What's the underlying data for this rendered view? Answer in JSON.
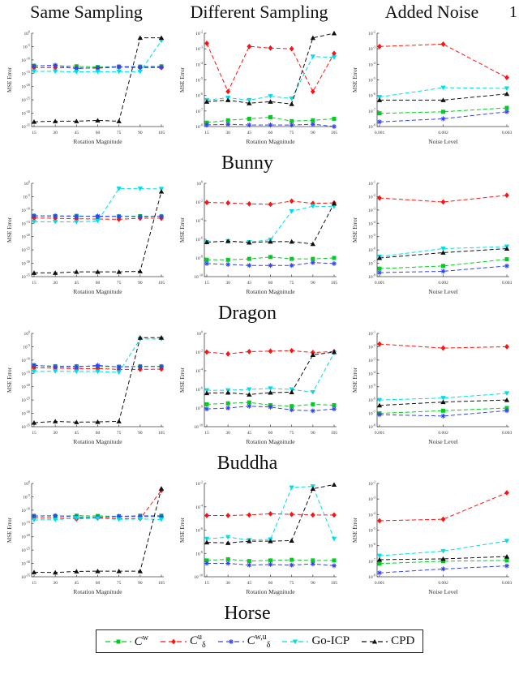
{
  "page": {
    "number": "1"
  },
  "header": {
    "columns": [
      "Same Sampling",
      "Different Sampling",
      "Added Noise"
    ]
  },
  "rows": [
    "Bunny",
    "Dragon",
    "Buddha",
    "Horse"
  ],
  "axis": {
    "ylabel": "MSE Error",
    "xlabel_rotation": "Rotation Magnitude",
    "xlabel_noise": "Noise Level"
  },
  "legend": {
    "entries": [
      {
        "name": "C^w",
        "base": "C",
        "sup": "w",
        "sub": "",
        "color": "#00cc22",
        "marker": "square"
      },
      {
        "name": "C_d^u",
        "base": "C",
        "sup": "u",
        "sub": "δ",
        "color": "#ff1111",
        "marker": "diamond"
      },
      {
        "name": "C_d^w,u",
        "base": "C",
        "sup": "w,u",
        "sub": "δ",
        "color": "#3344ee",
        "marker": "asterisk"
      },
      {
        "name": "Go-ICP",
        "base": "Go-ICP",
        "sup": "",
        "sub": "",
        "color": "#00dde8",
        "marker": "triangle-down"
      },
      {
        "name": "CPD",
        "base": "CPD",
        "sup": "",
        "sub": "",
        "color": "#111111",
        "marker": "triangle-up"
      }
    ]
  },
  "chart_data": [
    {
      "type": "line",
      "row_label": "Bunny",
      "column": "Same Sampling",
      "xlabel": "Rotation Magnitude",
      "ylabel": "MSE Error",
      "x": [
        15,
        30,
        45,
        60,
        75,
        90,
        105
      ],
      "xtick_labels": [
        "15",
        "30",
        "45",
        "60",
        "75",
        "90",
        "105"
      ],
      "ylog_range": [
        -35,
        0
      ],
      "ytick_step": 5,
      "grid": false,
      "series": [
        {
          "name": "C^w",
          "log10_values": [
            -12.2,
            -12.2,
            -12.4,
            -12.7,
            -12.5,
            -12.5,
            -12.4
          ]
        },
        {
          "name": "C_d^u",
          "log10_values": [
            -12.9,
            -12.9,
            -13.0,
            -13.1,
            -12.7,
            -12.9,
            -12.9
          ]
        },
        {
          "name": "C_d^w,u",
          "log10_values": [
            -12.3,
            -12.0,
            -13.3,
            -12.9,
            -12.6,
            -12.7,
            -12.7
          ]
        },
        {
          "name": "Go-ICP",
          "log10_values": [
            -14.3,
            -14.3,
            -14.5,
            -14.4,
            -14.4,
            -14.4,
            -2.8
          ]
        },
        {
          "name": "CPD",
          "log10_values": [
            -33.2,
            -33.0,
            -33.0,
            -32.7,
            -33.0,
            -1.7,
            -1.7
          ]
        }
      ]
    },
    {
      "type": "line",
      "row_label": "Bunny",
      "column": "Different Sampling",
      "xlabel": "Rotation Magnitude",
      "ylabel": "MSE Error",
      "x": [
        15,
        30,
        45,
        60,
        75,
        90,
        105
      ],
      "xtick_labels": [
        "15",
        "30",
        "45",
        "60",
        "75",
        "90",
        "105"
      ],
      "ylog_range": [
        -8,
        -2
      ],
      "ytick_step": 1,
      "grid": false,
      "series": [
        {
          "name": "C^w",
          "log10_values": [
            -7.75,
            -7.6,
            -7.5,
            -7.4,
            -7.65,
            -7.6,
            -7.5
          ]
        },
        {
          "name": "C_d^u",
          "log10_values": [
            -2.65,
            -5.75,
            -2.85,
            -2.95,
            -3.0,
            -5.75,
            -3.3
          ]
        },
        {
          "name": "C_d^w,u",
          "log10_values": [
            -7.9,
            -7.85,
            -7.9,
            -7.9,
            -7.9,
            -7.85,
            -8.0
          ]
        },
        {
          "name": "Go-ICP",
          "log10_values": [
            -6.3,
            -6.15,
            -6.3,
            -6.05,
            -6.2,
            -3.5,
            -3.55
          ]
        },
        {
          "name": "CPD",
          "log10_values": [
            -6.4,
            -6.3,
            -6.5,
            -6.4,
            -6.55,
            -2.3,
            -2.0
          ]
        }
      ]
    },
    {
      "type": "line",
      "row_label": "Bunny",
      "column": "Added Noise",
      "xlabel": "Noise Level",
      "ylabel": "MSE Error",
      "x": [
        0.001,
        0.002,
        0.003
      ],
      "xtick_labels": [
        "0.001",
        "0.002",
        "0.003"
      ],
      "ylog_range": [
        -8,
        -2
      ],
      "ytick_step": 1,
      "grid": false,
      "series": [
        {
          "name": "C^w",
          "log10_values": [
            -7.15,
            -7.05,
            -6.8
          ]
        },
        {
          "name": "C_d^u",
          "log10_values": [
            -2.85,
            -2.7,
            -4.85
          ]
        },
        {
          "name": "C_d^w,u",
          "log10_values": [
            -7.7,
            -7.5,
            -7.05
          ]
        },
        {
          "name": "Go-ICP",
          "log10_values": [
            -6.1,
            -5.5,
            -5.55
          ]
        },
        {
          "name": "CPD",
          "log10_values": [
            -6.3,
            -6.3,
            -5.9
          ]
        }
      ]
    },
    {
      "type": "line",
      "row_label": "Dragon",
      "column": "Same Sampling",
      "xlabel": "Rotation Magnitude",
      "ylabel": "MSE Error",
      "x": [
        15,
        30,
        45,
        60,
        75,
        90,
        105
      ],
      "xtick_labels": [
        "15",
        "30",
        "45",
        "60",
        "75",
        "90",
        "105"
      ],
      "ylog_range": [
        -35,
        0
      ],
      "ytick_step": 5,
      "grid": false,
      "series": [
        {
          "name": "C^w",
          "log10_values": [
            -12.2,
            -12.3,
            -12.2,
            -12.5,
            -12.4,
            -12.3,
            -12.4
          ]
        },
        {
          "name": "C_d^u",
          "log10_values": [
            -13.0,
            -13.1,
            -13.3,
            -13.4,
            -13.5,
            -13.1,
            -13.1
          ]
        },
        {
          "name": "C_d^w,u",
          "log10_values": [
            -12.2,
            -12.2,
            -12.4,
            -12.3,
            -12.4,
            -12.5,
            -12.4
          ]
        },
        {
          "name": "Go-ICP",
          "log10_values": [
            -14.4,
            -14.4,
            -14.5,
            -14.1,
            -2.0,
            -2.0,
            -2.1
          ]
        },
        {
          "name": "CPD",
          "log10_values": [
            -33.6,
            -33.6,
            -33.2,
            -33.2,
            -33.2,
            -33.0,
            -3.1
          ]
        }
      ]
    },
    {
      "type": "line",
      "row_label": "Dragon",
      "column": "Different Sampling",
      "xlabel": "Rotation Magnitude",
      "ylabel": "MSE Error",
      "x": [
        15,
        30,
        45,
        60,
        75,
        90,
        105
      ],
      "xtick_labels": [
        "15",
        "30",
        "45",
        "60",
        "75",
        "90",
        "105"
      ],
      "ylog_range": [
        -10,
        0
      ],
      "ytick_step": 2,
      "grid": false,
      "series": [
        {
          "name": "C^w",
          "log10_values": [
            -8.2,
            -8.2,
            -8.1,
            -7.9,
            -8.1,
            -8.1,
            -8.0
          ]
        },
        {
          "name": "C_d^u",
          "log10_values": [
            -2.05,
            -2.1,
            -2.2,
            -2.25,
            -1.9,
            -2.15,
            -2.1
          ]
        },
        {
          "name": "C_d^w,u",
          "log10_values": [
            -8.6,
            -8.7,
            -8.8,
            -8.8,
            -8.8,
            -8.5,
            -8.6
          ]
        },
        {
          "name": "Go-ICP",
          "log10_values": [
            -6.3,
            -6.2,
            -6.3,
            -6.05,
            -3.0,
            -2.45,
            -2.5
          ]
        },
        {
          "name": "CPD",
          "log10_values": [
            -6.3,
            -6.2,
            -6.35,
            -6.25,
            -6.25,
            -6.5,
            -2.15
          ]
        }
      ]
    },
    {
      "type": "line",
      "row_label": "Dragon",
      "column": "Added Noise",
      "xlabel": "Noise Level",
      "ylabel": "MSE Error",
      "x": [
        0.001,
        0.002,
        0.003
      ],
      "xtick_labels": [
        "0.001",
        "0.002",
        "0.003"
      ],
      "ylog_range": [
        -8,
        -1
      ],
      "ytick_step": 1,
      "grid": false,
      "series": [
        {
          "name": "C^w",
          "log10_values": [
            -7.4,
            -7.2,
            -6.7
          ]
        },
        {
          "name": "C_d^u",
          "log10_values": [
            -2.1,
            -2.4,
            -1.9
          ]
        },
        {
          "name": "C_d^w,u",
          "log10_values": [
            -7.7,
            -7.6,
            -7.2
          ]
        },
        {
          "name": "Go-ICP",
          "log10_values": [
            -6.5,
            -5.9,
            -5.75
          ]
        },
        {
          "name": "CPD",
          "log10_values": [
            -6.6,
            -6.2,
            -5.9
          ]
        }
      ]
    },
    {
      "type": "line",
      "row_label": "Buddha",
      "column": "Same Sampling",
      "xlabel": "Rotation Magnitude",
      "ylabel": "MSE Error",
      "x": [
        15,
        30,
        45,
        60,
        75,
        90,
        105
      ],
      "xtick_labels": [
        "15",
        "30",
        "45",
        "60",
        "75",
        "90",
        "105"
      ],
      "ylog_range": [
        -35,
        0
      ],
      "ytick_step": 5,
      "grid": false,
      "series": [
        {
          "name": "C^w",
          "log10_values": [
            -12.1,
            -12.3,
            -12.3,
            -12.4,
            -12.5,
            -12.4,
            -12.4
          ]
        },
        {
          "name": "C_d^u",
          "log10_values": [
            -12.9,
            -13.0,
            -13.3,
            -13.2,
            -13.5,
            -13.5,
            -13.4
          ]
        },
        {
          "name": "C_d^w,u",
          "log10_values": [
            -11.9,
            -12.5,
            -12.6,
            -12.0,
            -12.6,
            -12.4,
            -12.4
          ]
        },
        {
          "name": "Go-ICP",
          "log10_values": [
            -14.3,
            -14.2,
            -14.3,
            -14.3,
            -14.6,
            -2.1,
            -2.1
          ]
        },
        {
          "name": "CPD",
          "log10_values": [
            -33.5,
            -33.0,
            -33.3,
            -33.2,
            -33.0,
            -1.6,
            -1.6
          ]
        }
      ]
    },
    {
      "type": "line",
      "row_label": "Buddha",
      "column": "Different Sampling",
      "xlabel": "Rotation Magnitude",
      "ylabel": "MSE Error",
      "x": [
        15,
        30,
        45,
        60,
        75,
        90,
        105
      ],
      "xtick_labels": [
        "15",
        "30",
        "45",
        "60",
        "75",
        "90",
        "105"
      ],
      "ylog_range": [
        -10,
        0
      ],
      "ytick_step": 2,
      "grid": false,
      "series": [
        {
          "name": "C^w",
          "log10_values": [
            -7.6,
            -7.5,
            -7.4,
            -7.7,
            -7.8,
            -7.6,
            -7.7
          ]
        },
        {
          "name": "C_d^u",
          "log10_values": [
            -2.0,
            -2.2,
            -1.95,
            -1.9,
            -1.85,
            -2.05,
            -1.95
          ]
        },
        {
          "name": "C_d^w,u",
          "log10_values": [
            -8.1,
            -8.0,
            -7.8,
            -7.9,
            -8.2,
            -8.3,
            -8.1
          ]
        },
        {
          "name": "Go-ICP",
          "log10_values": [
            -6.1,
            -6.1,
            -6.0,
            -5.9,
            -6.0,
            -6.3,
            -2.1
          ]
        },
        {
          "name": "CPD",
          "log10_values": [
            -6.4,
            -6.35,
            -6.55,
            -6.35,
            -6.3,
            -2.3,
            -2.0
          ]
        }
      ]
    },
    {
      "type": "line",
      "row_label": "Buddha",
      "column": "Added Noise",
      "xlabel": "Noise Level",
      "ylabel": "MSE Error",
      "x": [
        0.001,
        0.002,
        0.003
      ],
      "xtick_labels": [
        "0.001",
        "0.002",
        "0.003"
      ],
      "ylog_range": [
        -8,
        -1
      ],
      "ytick_step": 1,
      "grid": false,
      "series": [
        {
          "name": "C^w",
          "log10_values": [
            -7.0,
            -6.8,
            -6.6
          ]
        },
        {
          "name": "C_d^u",
          "log10_values": [
            -1.8,
            -2.1,
            -2.0
          ]
        },
        {
          "name": "C_d^w,u",
          "log10_values": [
            -7.1,
            -7.2,
            -6.8
          ]
        },
        {
          "name": "Go-ICP",
          "log10_values": [
            -6.0,
            -5.85,
            -5.5
          ]
        },
        {
          "name": "CPD",
          "log10_values": [
            -6.4,
            -6.15,
            -6.0
          ]
        }
      ]
    },
    {
      "type": "line",
      "row_label": "Horse",
      "column": "Same Sampling",
      "xlabel": "Rotation Magnitude",
      "ylabel": "MSE Error",
      "x": [
        15,
        30,
        45,
        60,
        75,
        90,
        105
      ],
      "xtick_labels": [
        "15",
        "30",
        "45",
        "60",
        "75",
        "90",
        "105"
      ],
      "ylog_range": [
        -35,
        0
      ],
      "ytick_step": 5,
      "grid": false,
      "series": [
        {
          "name": "C^w",
          "log10_values": [
            -12.2,
            -12.2,
            -12.1,
            -12.2,
            -12.3,
            -12.1,
            -12.1
          ]
        },
        {
          "name": "C_d^u",
          "log10_values": [
            -12.9,
            -12.9,
            -13.3,
            -13.0,
            -13.1,
            -13.2,
            -2.6
          ]
        },
        {
          "name": "C_d^w,u",
          "log10_values": [
            -12.2,
            -12.1,
            -12.6,
            -12.7,
            -12.3,
            -12.4,
            -12.4
          ]
        },
        {
          "name": "Go-ICP",
          "log10_values": [
            -13.7,
            -13.6,
            -13.0,
            -13.1,
            -13.5,
            -13.3,
            -13.5
          ]
        },
        {
          "name": "CPD",
          "log10_values": [
            -33.3,
            -33.4,
            -33.0,
            -32.9,
            -32.9,
            -32.9,
            -1.9
          ]
        }
      ]
    },
    {
      "type": "line",
      "row_label": "Horse",
      "column": "Different Sampling",
      "xlabel": "Rotation Magnitude",
      "ylabel": "MSE Error",
      "x": [
        15,
        30,
        45,
        60,
        75,
        90,
        105
      ],
      "xtick_labels": [
        "15",
        "30",
        "45",
        "60",
        "75",
        "90",
        "105"
      ],
      "ylog_range": [
        -10,
        -2
      ],
      "ytick_step": 2,
      "grid": false,
      "series": [
        {
          "name": "C^w",
          "log10_values": [
            -8.6,
            -8.5,
            -8.65,
            -8.6,
            -8.55,
            -8.6,
            -8.6
          ]
        },
        {
          "name": "C_d^u",
          "log10_values": [
            -4.75,
            -4.75,
            -4.7,
            -4.6,
            -4.65,
            -4.7,
            -4.7
          ]
        },
        {
          "name": "C_d^w,u",
          "log10_values": [
            -8.85,
            -8.85,
            -9.0,
            -8.95,
            -9.0,
            -8.9,
            -9.05
          ]
        },
        {
          "name": "Go-ICP",
          "log10_values": [
            -6.75,
            -6.6,
            -6.85,
            -6.8,
            -2.35,
            -2.25,
            -6.75
          ]
        },
        {
          "name": "CPD",
          "log10_values": [
            -7.05,
            -7.1,
            -6.95,
            -6.95,
            -6.9,
            -2.45,
            -2.1
          ]
        }
      ]
    },
    {
      "type": "line",
      "row_label": "Horse",
      "column": "Added Noise",
      "xlabel": "Noise Level",
      "ylabel": "MSE Error",
      "x": [
        0.001,
        0.002,
        0.003
      ],
      "xtick_labels": [
        "0.001",
        "0.002",
        "0.003"
      ],
      "ylog_range": [
        -8,
        -2
      ],
      "ytick_step": 1,
      "grid": false,
      "series": [
        {
          "name": "C^w",
          "log10_values": [
            -7.15,
            -7.0,
            -6.95
          ]
        },
        {
          "name": "C_d^u",
          "log10_values": [
            -4.4,
            -4.3,
            -2.6
          ]
        },
        {
          "name": "C_d^w,u",
          "log10_values": [
            -7.75,
            -7.5,
            -7.3
          ]
        },
        {
          "name": "Go-ICP",
          "log10_values": [
            -6.65,
            -6.35,
            -5.7
          ]
        },
        {
          "name": "CPD",
          "log10_values": [
            -6.9,
            -6.85,
            -6.7
          ]
        }
      ]
    }
  ]
}
